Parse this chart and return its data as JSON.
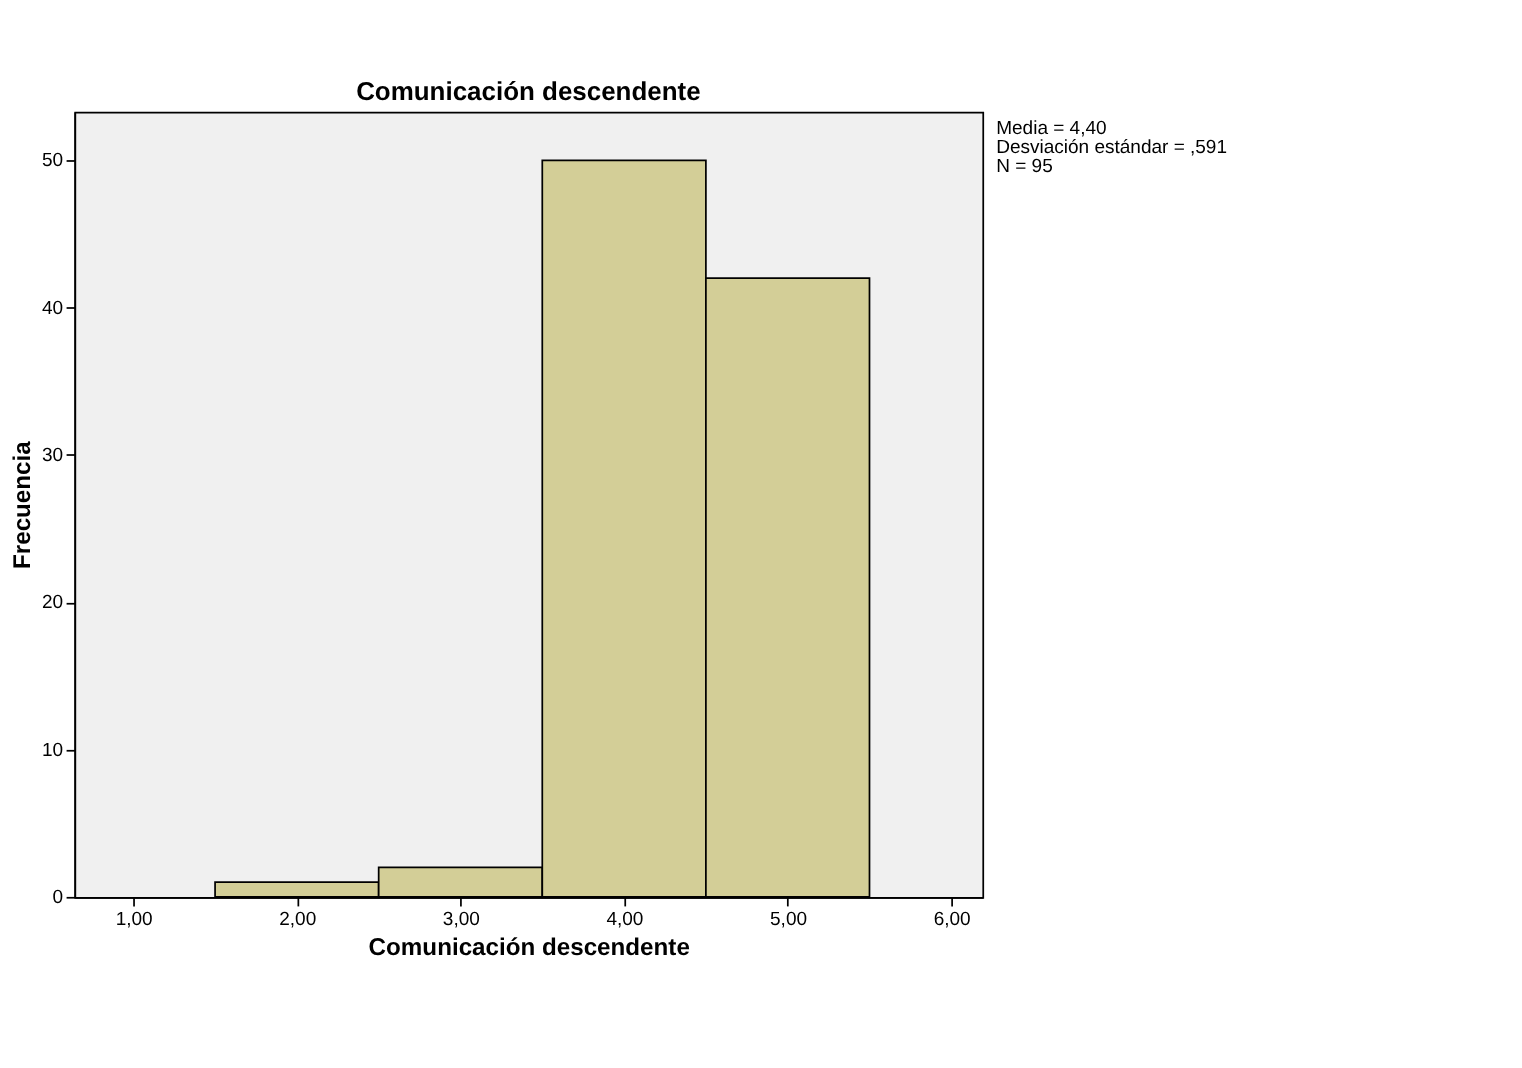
{
  "chart_data": {
    "type": "histogram",
    "title": "Comunicación descendente",
    "xlabel": "Comunicación descendente",
    "ylabel": "Frecuencia",
    "bins": [
      1.5,
      2.5,
      3.5,
      4.5,
      5.5
    ],
    "values": [
      1,
      2,
      50,
      42
    ],
    "color": "#d3ce97",
    "xlim": [
      0.64,
      6.19
    ],
    "xticks": [
      {
        "value": 1,
        "label": "1,00"
      },
      {
        "value": 2,
        "label": "2,00"
      },
      {
        "value": 3,
        "label": "3,00"
      },
      {
        "value": 4,
        "label": "4,00"
      },
      {
        "value": 5,
        "label": "5,00"
      },
      {
        "value": 6,
        "label": "6,00"
      }
    ],
    "ylim": [
      0,
      53.3
    ],
    "yticks": [
      0,
      10,
      20,
      30,
      40,
      50
    ],
    "grid": false,
    "annotations": [
      "Media = 4,40",
      "Desviación estándar = ,591",
      "N = 95"
    ]
  }
}
